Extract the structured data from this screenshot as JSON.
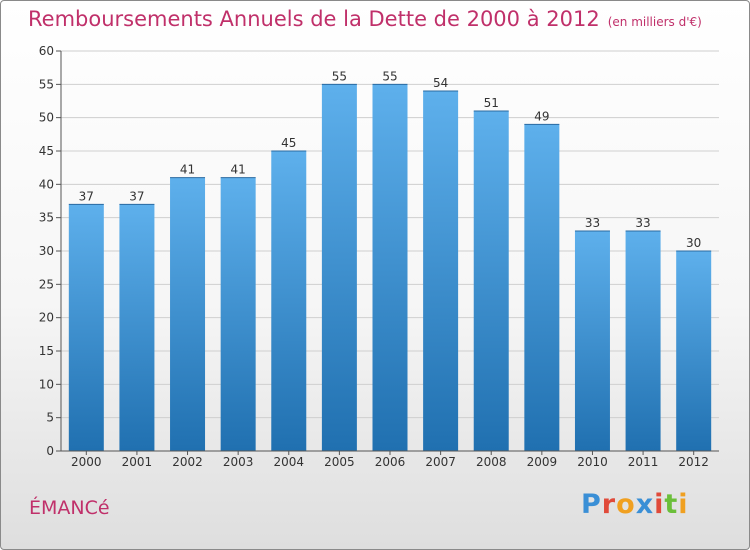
{
  "title": "Remboursements Annuels de la Dette de 2000 à 2012",
  "unit_note": "(en milliers d'€)",
  "place": "ÉMANCé",
  "logo": {
    "text": "Proxiti",
    "letter_colors": [
      "#3a8fd6",
      "#e04a3a",
      "#f0a020",
      "#3a8fd6",
      "#e04a3a",
      "#6bbf3a",
      "#f0a020"
    ]
  },
  "colors": {
    "title": "#c0306a",
    "bar_top": "#5eb0ec",
    "bar_bottom": "#2070b0"
  },
  "chart_data": {
    "type": "bar",
    "categories": [
      "2000",
      "2001",
      "2002",
      "2003",
      "2004",
      "2005",
      "2006",
      "2007",
      "2008",
      "2009",
      "2010",
      "2011",
      "2012"
    ],
    "values": [
      37,
      37,
      41,
      41,
      45,
      55,
      55,
      54,
      51,
      49,
      33,
      33,
      30
    ],
    "ylim": [
      0,
      60
    ],
    "yticks": [
      0,
      5,
      10,
      15,
      20,
      25,
      30,
      35,
      40,
      45,
      50,
      55,
      60
    ],
    "grid": "horizontal",
    "data_labels": true
  }
}
